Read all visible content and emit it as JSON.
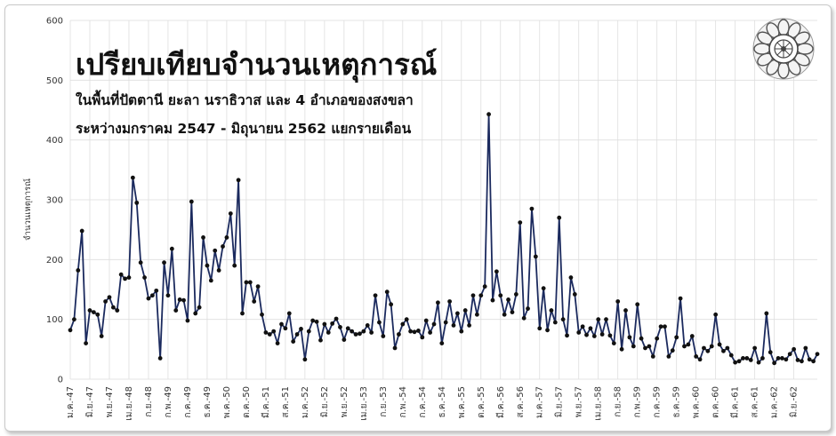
{
  "chart_data": {
    "type": "line",
    "title": "เปรียบเทียบจำนวนเหตุการณ์",
    "subtitle_lines": [
      "ในพื้นที่ปัตตานี ยะลา นราธิวาส และ 4 อำเภอของสงขลา",
      "ระหว่างมกราคม 2547 - มิถุนายน 2562 แยกรายเดือน"
    ],
    "ylabel": "จำนวนเหตุการณ์",
    "xlabel": "",
    "ylim": [
      0,
      600
    ],
    "yticks": [
      0,
      100,
      200,
      300,
      400,
      500,
      600
    ],
    "grid": true,
    "legend": "none",
    "line_color": "#1b2a5e",
    "marker_color": "#111111",
    "x_tick_labels": [
      "ม.ค.-47",
      "มิ.ย.-47",
      "พ.ย.-47",
      "เม.ย.-48",
      "ก.ย.-48",
      "ก.พ.-49",
      "ก.ค.-49",
      "ธ.ค.-49",
      "พ.ค.-50",
      "ต.ค.-50",
      "มี.ค.-51",
      "ส.ค.-51",
      "ม.ค.-52",
      "มิ.ย.-52",
      "พ.ย.-52",
      "เม.ย.-53",
      "ก.ย.-53",
      "ก.พ.-54",
      "ก.ค.-54",
      "ธ.ค.-54",
      "พ.ค.-55",
      "ต.ค.-55",
      "มี.ค.-56",
      "ส.ค.-56",
      "ม.ค.-57",
      "มิ.ย.-57",
      "พ.ย.-57",
      "เม.ย.-58",
      "ก.ย.-58",
      "ก.พ.-59",
      "ก.ค.-59",
      "ธ.ค.-59",
      "พ.ค.-60",
      "ต.ค.-60",
      "มี.ค.-61",
      "ส.ค.-61",
      "ม.ค.-62",
      "มิ.ย.-62"
    ],
    "series": [
      {
        "name": "",
        "values": [
          82,
          100,
          182,
          248,
          60,
          115,
          112,
          108,
          72,
          130,
          137,
          120,
          115,
          175,
          168,
          170,
          337,
          295,
          195,
          170,
          135,
          140,
          148,
          35,
          195,
          140,
          218,
          115,
          133,
          132,
          98,
          297,
          110,
          120,
          237,
          190,
          165,
          215,
          182,
          222,
          237,
          277,
          190,
          333,
          110,
          162,
          162,
          130,
          155,
          108,
          78,
          75,
          80,
          60,
          92,
          85,
          110,
          63,
          75,
          84,
          33,
          80,
          98,
          96,
          65,
          92,
          78,
          93,
          101,
          87,
          66,
          85,
          80,
          75,
          76,
          80,
          90,
          78,
          140,
          95,
          72,
          146,
          125,
          52,
          75,
          92,
          100,
          80,
          79,
          81,
          70,
          98,
          78,
          92,
          128,
          60,
          95,
          130,
          90,
          110,
          80,
          115,
          90,
          140,
          108,
          140,
          155,
          443,
          132,
          180,
          140,
          108,
          133,
          112,
          142,
          262,
          102,
          118,
          285,
          205,
          85,
          152,
          82,
          115,
          95,
          270,
          100,
          73,
          170,
          142,
          78,
          88,
          74,
          85,
          72,
          100,
          75,
          100,
          73,
          60,
          130,
          50,
          115,
          70,
          55,
          125,
          68,
          52,
          55,
          38,
          68,
          88,
          88,
          38,
          48,
          70,
          135,
          55,
          58,
          72,
          38,
          33,
          52,
          47,
          55,
          108,
          58,
          47,
          52,
          40,
          28,
          30,
          35,
          35,
          32,
          52,
          28,
          35,
          110,
          45,
          27,
          35,
          35,
          33,
          42,
          50,
          32,
          30,
          52,
          33,
          30,
          42
        ]
      }
    ]
  }
}
